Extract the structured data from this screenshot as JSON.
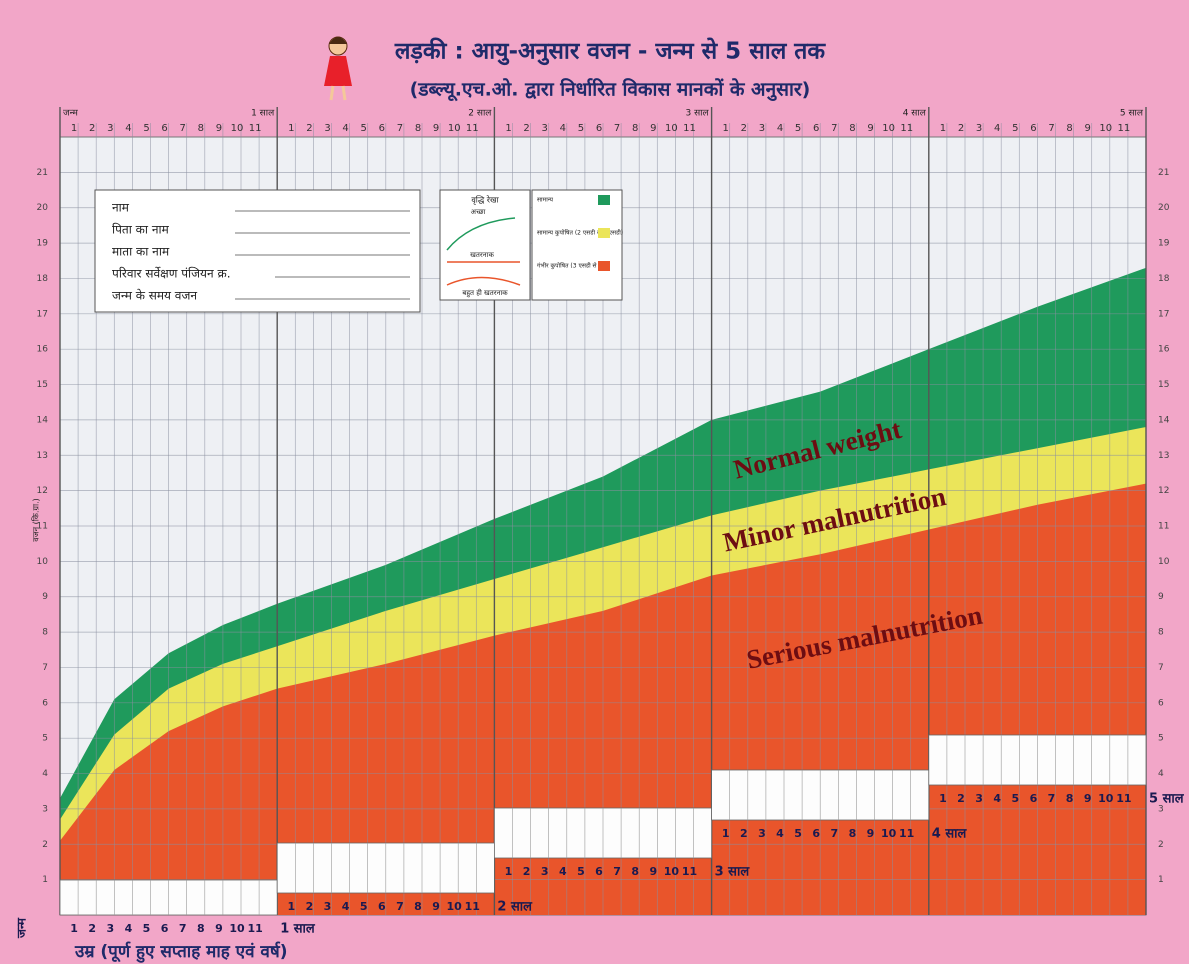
{
  "chart_data": {
    "type": "band-area",
    "title": "लड़की : आयु-अनुसार वजन - जन्म से 5 साल तक",
    "subtitle": "(डब्ल्यू.एच.ओ. द्वारा निर्धारित विकास मानकों के अनुसार)",
    "x_label": "उम्र (पूर्ण हुए सप्ताह माह एवं वर्ष)",
    "y_label": "वजन (कि.ग्रा.)",
    "x": [
      0,
      3,
      6,
      9,
      12,
      18,
      24,
      30,
      36,
      42,
      48,
      54,
      60
    ],
    "series": [
      {
        "name": "Serious malnutrition",
        "color": "#e9552b",
        "values": [
          2.1,
          4.1,
          5.2,
          5.9,
          6.4,
          7.1,
          7.9,
          8.6,
          9.6,
          10.2,
          10.9,
          11.6,
          12.2
        ]
      },
      {
        "name": "Minor malnutrition",
        "color": "#ebe55a",
        "values": [
          2.7,
          5.1,
          6.4,
          7.1,
          7.6,
          8.6,
          9.5,
          10.4,
          11.3,
          12.0,
          12.6,
          13.2,
          13.8
        ]
      },
      {
        "name": "Normal weight",
        "color": "#1f9a5c",
        "values": [
          3.3,
          6.1,
          7.4,
          8.2,
          8.8,
          9.9,
          11.2,
          12.4,
          14.0,
          14.8,
          16.0,
          17.2,
          18.3
        ]
      }
    ],
    "xlim": [
      0,
      60
    ],
    "xticks": [
      {
        "value": 0,
        "label": "जन्म"
      },
      {
        "value": 12,
        "label": "1 साल"
      },
      {
        "value": 24,
        "label": "2 साल"
      },
      {
        "value": 36,
        "label": "3 साल"
      },
      {
        "value": 48,
        "label": "4 साल"
      },
      {
        "value": 60,
        "label": "5 साल"
      }
    ],
    "xminorticks": [
      {
        "value": 1,
        "label": "1"
      },
      {
        "value": 2,
        "label": "2"
      },
      {
        "value": 3,
        "label": "3"
      },
      {
        "value": 4,
        "label": "4"
      },
      {
        "value": 5,
        "label": "5"
      },
      {
        "value": 6,
        "label": "6"
      },
      {
        "value": 7,
        "label": "7"
      },
      {
        "value": 8,
        "label": "8"
      },
      {
        "value": 9,
        "label": "9"
      },
      {
        "value": 10,
        "label": "10"
      },
      {
        "value": 11,
        "label": "11"
      },
      {
        "value": 13,
        "label": "1"
      },
      {
        "value": 14,
        "label": "2"
      },
      {
        "value": 15,
        "label": "3"
      },
      {
        "value": 16,
        "label": "4"
      },
      {
        "value": 17,
        "label": "5"
      },
      {
        "value": 18,
        "label": "6"
      },
      {
        "value": 19,
        "label": "7"
      },
      {
        "value": 20,
        "label": "8"
      },
      {
        "value": 21,
        "label": "9"
      },
      {
        "value": 22,
        "label": "10"
      },
      {
        "value": 23,
        "label": "11"
      },
      {
        "value": 25,
        "label": "1"
      },
      {
        "value": 26,
        "label": "2"
      },
      {
        "value": 27,
        "label": "3"
      },
      {
        "value": 28,
        "label": "4"
      },
      {
        "value": 29,
        "label": "5"
      },
      {
        "value": 30,
        "label": "6"
      },
      {
        "value": 31,
        "label": "7"
      },
      {
        "value": 32,
        "label": "8"
      },
      {
        "value": 33,
        "label": "9"
      },
      {
        "value": 34,
        "label": "10"
      },
      {
        "value": 35,
        "label": "11"
      },
      {
        "value": 37,
        "label": "1"
      },
      {
        "value": 38,
        "label": "2"
      },
      {
        "value": 39,
        "label": "3"
      },
      {
        "value": 40,
        "label": "4"
      },
      {
        "value": 41,
        "label": "5"
      },
      {
        "value": 42,
        "label": "6"
      },
      {
        "value": 43,
        "label": "7"
      },
      {
        "value": 44,
        "label": "8"
      },
      {
        "value": 45,
        "label": "9"
      },
      {
        "value": 46,
        "label": "10"
      },
      {
        "value": 47,
        "label": "11"
      },
      {
        "value": 49,
        "label": "1"
      },
      {
        "value": 50,
        "label": "2"
      },
      {
        "value": 51,
        "label": "3"
      },
      {
        "value": 52,
        "label": "4"
      },
      {
        "value": 53,
        "label": "5"
      },
      {
        "value": 54,
        "label": "6"
      },
      {
        "value": 55,
        "label": "7"
      },
      {
        "value": 56,
        "label": "8"
      },
      {
        "value": 57,
        "label": "9"
      },
      {
        "value": 58,
        "label": "10"
      },
      {
        "value": 59,
        "label": "11"
      }
    ],
    "ylim": [
      0,
      22
    ],
    "yticks": [
      1,
      2,
      3,
      4,
      5,
      6,
      7,
      8,
      9,
      10,
      11,
      12,
      13,
      14,
      15,
      16,
      17,
      18,
      19,
      20,
      21
    ],
    "grid": true
  },
  "form": {
    "fields": [
      "नाम",
      "पिता का नाम",
      "माता का नाम",
      "परिवार सर्वेक्षण पंजियन क्र.",
      "जन्म के समय वजन"
    ]
  },
  "legend_panel": {
    "growth_title": "वृद्धि रेखा",
    "growth_labels": [
      "अच्छा",
      "खतरनाक",
      "बहुत ही खतरनाक"
    ],
    "status": [
      {
        "label": "सामान्य",
        "color": "#1f9a5c"
      },
      {
        "label": "सामान्य कुपोषित (2 एसडी से 3 एसडी)",
        "color": "#ebe55a"
      },
      {
        "label": "गंभीर कुपोषित (3 एसडी से नीचे)",
        "color": "#e9552b"
      }
    ]
  }
}
